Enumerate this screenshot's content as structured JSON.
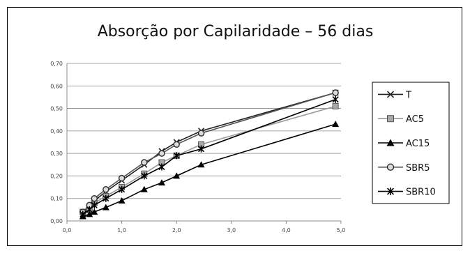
{
  "chart_data": {
    "type": "line",
    "title": "Absorção por Capilaridade – 56 dias",
    "xlabel": "",
    "ylabel": "",
    "xlim": [
      0,
      5
    ],
    "ylim": [
      0,
      0.7
    ],
    "x_ticks": [
      "0,0",
      "1,0",
      "2,0",
      "3,0",
      "4,0",
      "5,0"
    ],
    "y_ticks": [
      "0,00",
      "0,10",
      "0,20",
      "0,30",
      "0,40",
      "0,50",
      "0,60",
      "0,70"
    ],
    "x_tick_values": [
      0,
      1,
      2,
      3,
      4,
      5
    ],
    "y_tick_values": [
      0,
      0.1,
      0.2,
      0.3,
      0.4,
      0.5,
      0.6,
      0.7
    ],
    "grid": "horizontal",
    "legend": "right",
    "x": [
      0.29,
      0.41,
      0.5,
      0.71,
      1.0,
      1.41,
      1.73,
      2.0,
      2.45,
      4.9
    ],
    "series": [
      {
        "name": "T",
        "marker": "x",
        "color": "#222222",
        "values": [
          0.04,
          0.06,
          0.09,
          0.13,
          0.18,
          0.25,
          0.31,
          0.35,
          0.4,
          0.57
        ]
      },
      {
        "name": "AC5",
        "marker": "square",
        "color": "#999999",
        "values": [
          0.04,
          0.05,
          0.08,
          0.11,
          0.15,
          0.21,
          0.26,
          0.29,
          0.34,
          0.51
        ]
      },
      {
        "name": "AC15",
        "marker": "triangle",
        "color": "#000000",
        "values": [
          0.02,
          0.03,
          0.04,
          0.06,
          0.09,
          0.14,
          0.17,
          0.2,
          0.25,
          0.43
        ]
      },
      {
        "name": "SBR5",
        "marker": "circle",
        "color": "#555555",
        "values": [
          0.04,
          0.07,
          0.1,
          0.14,
          0.19,
          0.26,
          0.3,
          0.34,
          0.39,
          0.57
        ]
      },
      {
        "name": "SBR10",
        "marker": "star",
        "color": "#000000",
        "values": [
          0.03,
          0.05,
          0.07,
          0.1,
          0.14,
          0.2,
          0.24,
          0.29,
          0.32,
          0.54
        ]
      }
    ]
  }
}
